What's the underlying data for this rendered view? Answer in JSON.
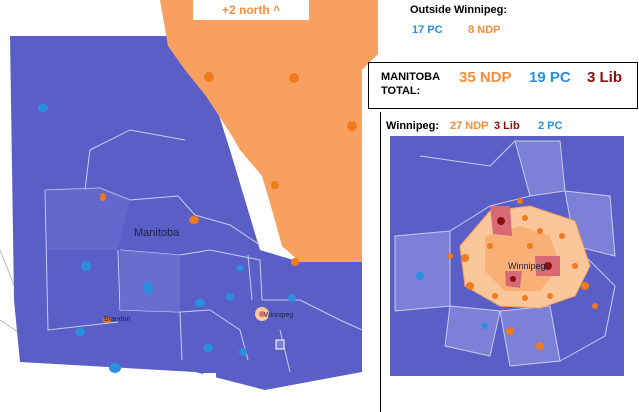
{
  "banner": {
    "north_text": "+2 north ^"
  },
  "outside": {
    "title": "Outside Winnipeg:",
    "pc": "17 PC",
    "ndp": "8 NDP"
  },
  "total": {
    "label_line1": "MANITOBA",
    "label_line2": "TOTAL:",
    "ndp": "35 NDP",
    "pc": "19 PC",
    "lib": "3 Lib"
  },
  "winnipeg": {
    "title": "Winnipeg:",
    "ndp": "27 NDP",
    "lib": "3 Lib",
    "pc": "2 PC"
  },
  "places": {
    "manitoba": "Manitoba",
    "brandon": "Brandon",
    "winnipeg_small": "Winnipeg",
    "winnipeg_inset": "Winnipeg"
  },
  "colors": {
    "pc": "#5a5fc8",
    "pc_light": "#7c80d6",
    "ndp": "#f7a060",
    "ndp_light": "#fbc79a",
    "lib": "#d86a78",
    "lib_dark": "#8a1010",
    "dot_pc": "#2a8fe0",
    "dot_ndp": "#f07a1c"
  }
}
